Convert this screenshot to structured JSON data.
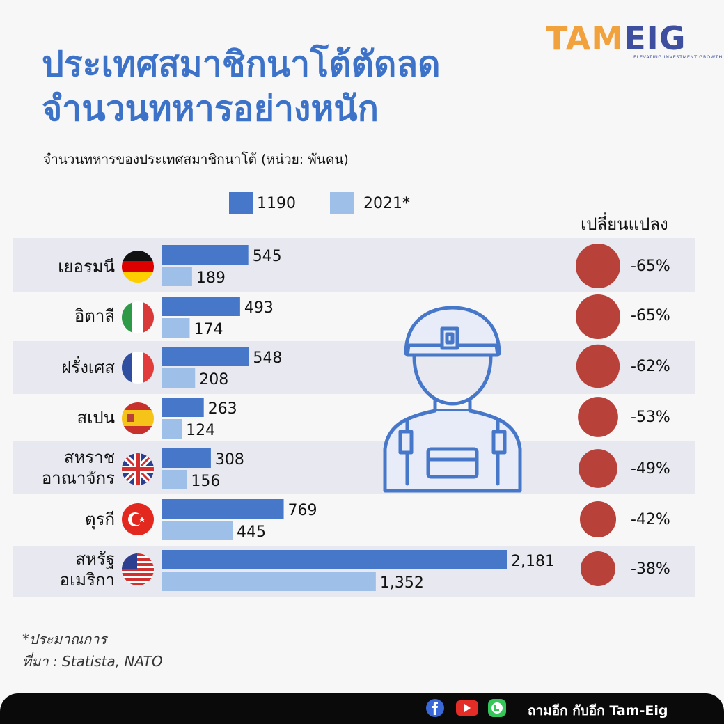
{
  "brand": {
    "logo_part1": "TAM",
    "logo_part2": "EIG",
    "tagline": "ELEVATING INVESTMENT GROWTH"
  },
  "title_line1": "ประเทศสมาชิกนาโต้ตัดลด",
  "title_line2": "จำนวนทหารอย่างหนัก",
  "subtitle": "จำนวนทหารของประเทศสมาชิกนาโต้ (หน่วย: พันคน)",
  "change_header": "เปลี่ยนแปลง",
  "colors": {
    "series_1190": "#4677c8",
    "series_2021": "#9dbfe8",
    "change_circle": "#b8413a",
    "title": "#3d72c9"
  },
  "chart_data": {
    "type": "bar",
    "orientation": "horizontal",
    "title": "",
    "categories": [
      "เยอรมนี",
      "อิตาลี",
      "ฝรั่งเศส",
      "สเปน",
      "สหราช อาณาจักร",
      "ตุรกี",
      "สหรัฐ อเมริกา"
    ],
    "series": [
      {
        "name": "1190",
        "values": [
          545,
          493,
          548,
          263,
          308,
          769,
          2181
        ],
        "labels": [
          "545",
          "493",
          "548",
          "263",
          "308",
          "769",
          "2,181"
        ]
      },
      {
        "name": "2021*",
        "values": [
          189,
          174,
          208,
          124,
          156,
          445,
          1352
        ],
        "labels": [
          "189",
          "174",
          "208",
          "124",
          "156",
          "445",
          "1,352"
        ]
      }
    ],
    "change": [
      "-65%",
      "-65%",
      "-62%",
      "-53%",
      "-49%",
      "-42%",
      "-38%"
    ],
    "change_values": [
      -65,
      -65,
      -62,
      -53,
      -49,
      -42,
      -38
    ],
    "legend": "top"
  },
  "flags": [
    "germany-flag-icon",
    "italy-flag-icon",
    "france-flag-icon",
    "spain-flag-icon",
    "uk-flag-icon",
    "turkey-flag-icon",
    "usa-flag-icon"
  ],
  "notes": {
    "line1": "*ประมาณการ",
    "line2": "ที่มา : Statista, NATO"
  },
  "footer": {
    "text": "ถามอีก กับอีก Tam-Eig",
    "icons": [
      "facebook-icon",
      "youtube-icon",
      "line-icon"
    ]
  }
}
